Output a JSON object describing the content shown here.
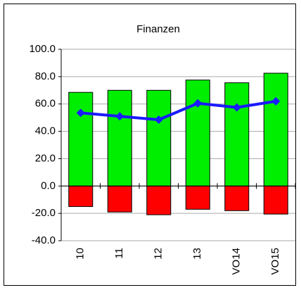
{
  "chart_data": {
    "type": "bar",
    "title": "Finanzen",
    "categories": [
      "10",
      "11",
      "12",
      "13",
      "VO14",
      "VO15"
    ],
    "series": [
      {
        "type": "bar",
        "color": "#00ee00",
        "values": [
          68.5,
          70,
          70,
          77.5,
          75.5,
          82.5
        ]
      },
      {
        "type": "bar",
        "color": "#ff0000",
        "values": [
          -15,
          -19,
          -21,
          -17,
          -18,
          -20.5
        ]
      },
      {
        "type": "line",
        "color": "#1a1aff",
        "values": [
          53.5,
          51,
          48.5,
          60.5,
          57.5,
          62
        ]
      }
    ],
    "ylim": [
      -40,
      100
    ],
    "yticks": [
      {
        "value": -40,
        "label": "-40.0"
      },
      {
        "value": -20,
        "label": "-20.0"
      },
      {
        "value": 0,
        "label": "0.0"
      },
      {
        "value": 20,
        "label": "20.0"
      },
      {
        "value": 40,
        "label": "40.0"
      },
      {
        "value": 60,
        "label": "60.0"
      },
      {
        "value": 80,
        "label": "80.0"
      },
      {
        "value": 100,
        "label": "100.0"
      }
    ],
    "grid": true
  }
}
